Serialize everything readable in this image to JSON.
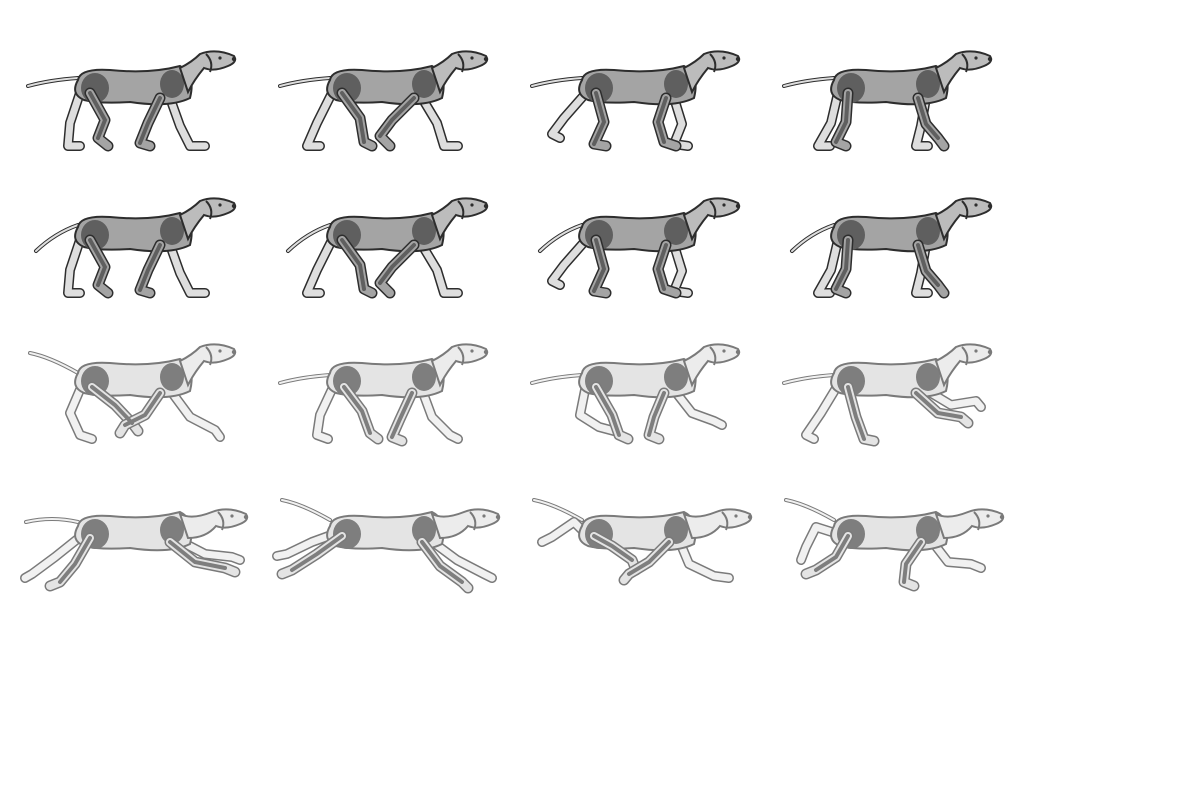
{
  "sheet": {
    "background": "#ffffff",
    "frames": [
      {
        "row": 1,
        "col": 1,
        "gait": "walk",
        "shade": "dark",
        "frame": 1,
        "tail": "low",
        "stance": 0
      },
      {
        "row": 1,
        "col": 2,
        "gait": "walk",
        "shade": "dark",
        "frame": 2,
        "tail": "low",
        "stance": 1
      },
      {
        "row": 1,
        "col": 3,
        "gait": "walk",
        "shade": "dark",
        "frame": 3,
        "tail": "low",
        "stance": 2
      },
      {
        "row": 1,
        "col": 4,
        "gait": "walk",
        "shade": "dark",
        "frame": 4,
        "tail": "low",
        "stance": 3
      },
      {
        "row": 2,
        "col": 1,
        "gait": "walk",
        "shade": "dark",
        "frame": 5,
        "tail": "down",
        "stance": 0
      },
      {
        "row": 2,
        "col": 2,
        "gait": "walk",
        "shade": "dark",
        "frame": 6,
        "tail": "down",
        "stance": 1
      },
      {
        "row": 2,
        "col": 3,
        "gait": "walk",
        "shade": "dark",
        "frame": 7,
        "tail": "down",
        "stance": 2
      },
      {
        "row": 2,
        "col": 4,
        "gait": "walk",
        "shade": "dark",
        "frame": 8,
        "tail": "down",
        "stance": 3
      },
      {
        "row": 3,
        "col": 1,
        "gait": "run",
        "shade": "light",
        "frame": 9,
        "tail": "up",
        "stance": 0
      },
      {
        "row": 3,
        "col": 2,
        "gait": "run",
        "shade": "light",
        "frame": 10,
        "tail": "low",
        "stance": 1
      },
      {
        "row": 3,
        "col": 3,
        "gait": "run",
        "shade": "light",
        "frame": 11,
        "tail": "low",
        "stance": 2
      },
      {
        "row": 3,
        "col": 4,
        "gait": "run",
        "shade": "light",
        "frame": 12,
        "tail": "low",
        "stance": 3
      },
      {
        "row": 4,
        "col": 1,
        "gait": "gallop",
        "shade": "light",
        "frame": 13,
        "tail": "level",
        "stance": 0
      },
      {
        "row": 4,
        "col": 2,
        "gait": "gallop",
        "shade": "light",
        "frame": 14,
        "tail": "up",
        "stance": 1
      },
      {
        "row": 4,
        "col": 3,
        "gait": "gallop",
        "shade": "light",
        "frame": 15,
        "tail": "up",
        "stance": 2
      },
      {
        "row": 4,
        "col": 4,
        "gait": "gallop",
        "shade": "light",
        "frame": 16,
        "tail": "up",
        "stance": 3
      }
    ]
  }
}
